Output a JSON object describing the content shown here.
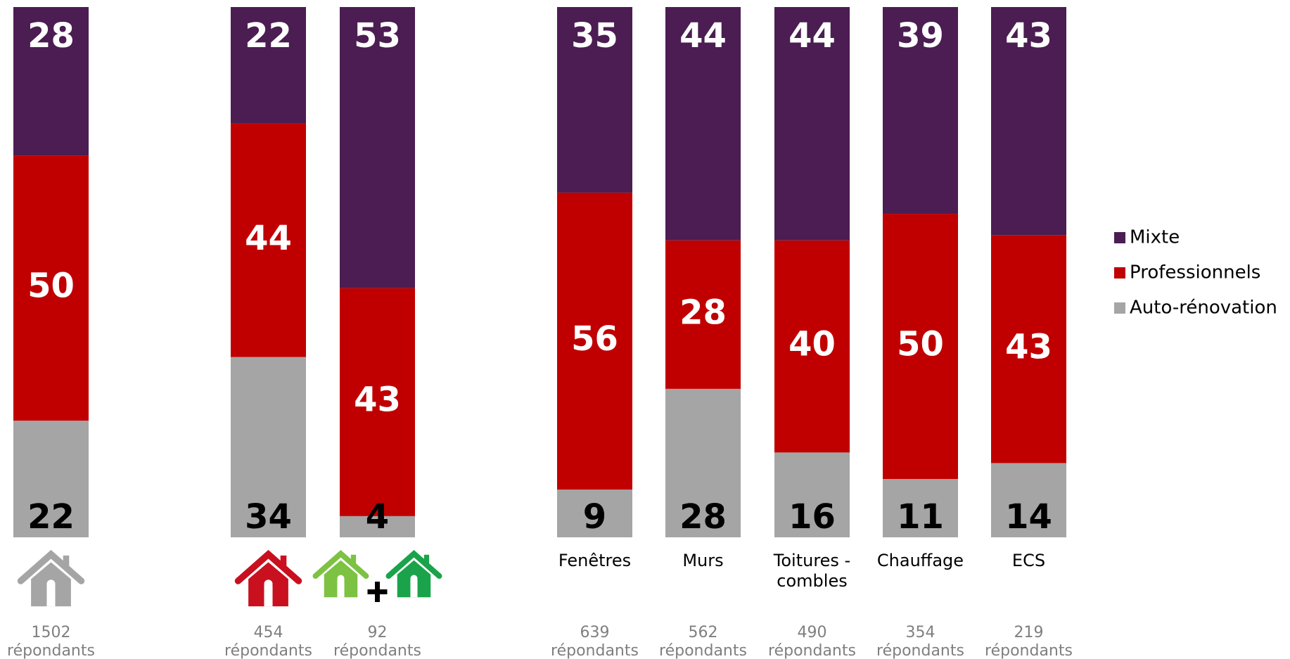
{
  "chart_data": {
    "type": "bar",
    "stacked": true,
    "percent_scale": true,
    "ylim": [
      0,
      100
    ],
    "grid": false,
    "legend_position": "right",
    "categories": [
      {
        "label": "",
        "respondents_count": "1502",
        "respondents_word": "répondants",
        "icon": "grey-house-icon"
      },
      {
        "label": "",
        "respondents_count": "454",
        "respondents_word": "répondants",
        "icon": "red-house-icon"
      },
      {
        "label": "",
        "respondents_count": "92",
        "respondents_word": "répondants",
        "icon": "two-green-houses-icon"
      },
      {
        "label": "Fenêtres",
        "respondents_count": "639",
        "respondents_word": "répondants"
      },
      {
        "label": "Murs",
        "respondents_count": "562",
        "respondents_word": "répondants"
      },
      {
        "label": "Toitures -",
        "label_line2": "combles",
        "respondents_count": "490",
        "respondents_word": "répondants"
      },
      {
        "label": "Chauffage",
        "respondents_count": "354",
        "respondents_word": "répondants"
      },
      {
        "label": "ECS",
        "respondents_count": "219",
        "respondents_word": "répondants"
      }
    ],
    "series": [
      {
        "name": "Auto-rénovation",
        "color": "#a5a5a5",
        "label_color": "#000000",
        "values": [
          22,
          34,
          4,
          9,
          28,
          16,
          11,
          14
        ]
      },
      {
        "name": "Professionnels",
        "color": "#c00000",
        "label_color": "#ffffff",
        "values": [
          50,
          44,
          43,
          56,
          28,
          40,
          50,
          43
        ]
      },
      {
        "name": "Mixte",
        "color": "#4b1d52",
        "label_color": "#ffffff",
        "values": [
          28,
          22,
          53,
          35,
          44,
          44,
          39,
          43
        ]
      }
    ],
    "legend_order": [
      "Mixte",
      "Professionnels",
      "Auto-rénovation"
    ],
    "icon_colors": {
      "grey_house": "#a5a5a5",
      "red_house": "#c8101f",
      "light_green_house": "#7dc242",
      "green_house": "#1aa34a",
      "plus_sign": "#000000"
    }
  }
}
